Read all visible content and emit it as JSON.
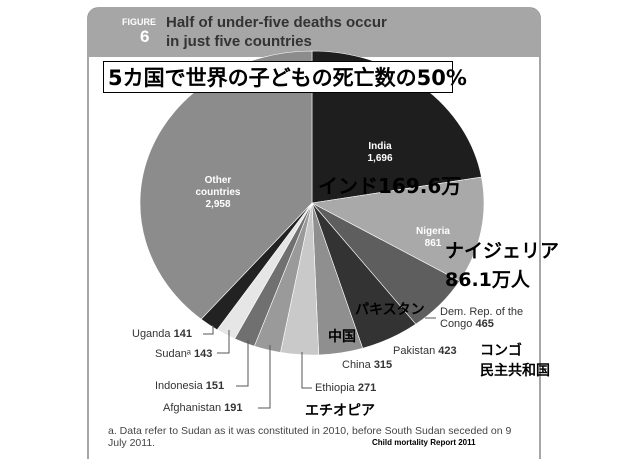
{
  "figure_label": "FIGURE",
  "figure_number": "6",
  "chart_data": {
    "type": "pie",
    "title": [
      "Half of under-five deaths occur",
      "in just five countries"
    ],
    "categories": [
      "India",
      "Nigeria",
      "Dem. Rep. of the Congo",
      "Pakistan",
      "China",
      "Ethiopia",
      "Afghanistan",
      "Indonesia",
      "Sudanᵃ",
      "Uganda",
      "Other countries"
    ],
    "values": [
      1696,
      861,
      465,
      423,
      315,
      271,
      191,
      151,
      143,
      141,
      2958
    ],
    "value_labels": [
      "1,696",
      "861",
      "465",
      "423",
      "315",
      "271",
      "191",
      "151",
      "143",
      "141",
      "2,958"
    ],
    "colors": [
      "#1e1e1e",
      "#a9a9a9",
      "#5e5e5e",
      "#333333",
      "#8f8f8f",
      "#c9c9c9",
      "#9a9a9a",
      "#707070",
      "#e6e6e6",
      "#222222",
      "#8c8c8c"
    ],
    "annotations": [
      "5カ国で世界の子どもの死亡数の50%",
      "インド169.6万",
      "ナイジェリア",
      "86.1万人",
      "パキスタン",
      "中国",
      "コンゴ",
      "民主共和国",
      "エチオピア"
    ]
  },
  "footnote": "a. Data refer to Sudan as it was constituted in 2010, before South Sudan seceded on 9 July 2011.",
  "source": "Child mortality Report 2011"
}
